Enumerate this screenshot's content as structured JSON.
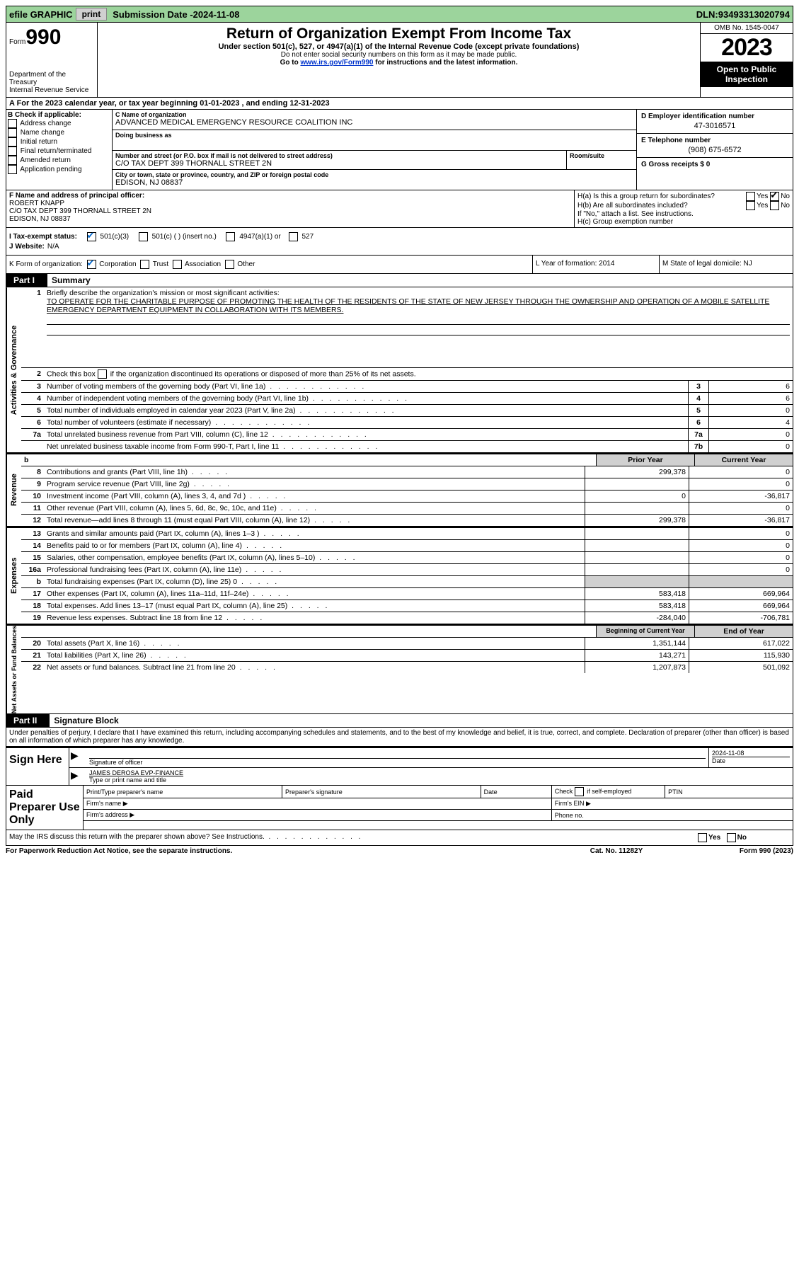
{
  "topbar": {
    "efile": "efile GRAPHIC",
    "print": "print",
    "sub_label": "Submission Date - ",
    "sub_date": "2024-11-08",
    "dln_label": "DLN: ",
    "dln": "93493313020794"
  },
  "header": {
    "form_prefix": "Form",
    "form_number": "990",
    "dept": "Department of the Treasury\nInternal Revenue Service",
    "title": "Return of Organization Exempt From Income Tax",
    "sub1": "Under section 501(c), 527, or 4947(a)(1) of the Internal Revenue Code (except private foundations)",
    "sub2": "Do not enter social security numbers on this form as it may be made public.",
    "sub3_prefix": "Go to ",
    "sub3_link": "www.irs.gov/Form990",
    "sub3_suffix": " for instructions and the latest information.",
    "omb": "OMB No. 1545-0047",
    "year": "2023",
    "open": "Open to Public Inspection"
  },
  "sectionA": "A  For the 2023 calendar year, or tax year beginning 01-01-2023    , and ending 12-31-2023",
  "colB": {
    "header": "B Check if applicable:",
    "items": [
      "Address change",
      "Name change",
      "Initial return",
      "Final return/terminated",
      "Amended return",
      "Application pending"
    ]
  },
  "colC": {
    "name_label": "C Name of organization",
    "name": "ADVANCED MEDICAL EMERGENCY RESOURCE COALITION INC",
    "dba_label": "Doing business as",
    "dba": "",
    "street_label": "Number and street (or P.O. box if mail is not delivered to street address)",
    "street": "C/O TAX DEPT 399 THORNALL STREET 2N",
    "room_label": "Room/suite",
    "city_label": "City or town, state or province, country, and ZIP or foreign postal code",
    "city": "EDISON, NJ  08837"
  },
  "colDE": {
    "d_label": "D Employer identification number",
    "d_val": "47-3016571",
    "e_label": "E Telephone number",
    "e_val": "(908) 675-6572",
    "g_label": "G Gross receipts $ ",
    "g_val": "0"
  },
  "rowF": {
    "label": "F  Name and address of principal officer:",
    "name": "ROBERT KNAPP",
    "addr1": "C/O TAX DEPT 399 THORNALL STREET 2N",
    "addr2": "EDISON, NJ  08837"
  },
  "rowH": {
    "ha": "H(a)  Is this a group return for subordinates?",
    "hb": "H(b)  Are all subordinates included?",
    "hb_note": "If \"No,\" attach a list. See instructions.",
    "hc": "H(c)  Group exemption number ",
    "yes": "Yes",
    "no": "No"
  },
  "rowI": {
    "label": "I    Tax-exempt status:",
    "opt1": "501(c)(3)",
    "opt2": "501(c) (  ) (insert no.)",
    "opt3": "4947(a)(1) or",
    "opt4": "527"
  },
  "rowJ": {
    "label": "J    Website: ",
    "val": "N/A"
  },
  "rowK": {
    "label": "K Form of organization:",
    "opts": [
      "Corporation",
      "Trust",
      "Association",
      "Other"
    ]
  },
  "rowL": {
    "label": "L Year of formation: ",
    "val": "2014"
  },
  "rowM": {
    "label": "M State of legal domicile: ",
    "val": "NJ"
  },
  "parts": {
    "p1": "Part I",
    "p1t": "Summary",
    "p2": "Part II",
    "p2t": "Signature Block"
  },
  "tabs": {
    "ag": "Activities & Governance",
    "rev": "Revenue",
    "exp": "Expenses",
    "na": "Net Assets or Fund Balances"
  },
  "p1": {
    "mission_label": "Briefly describe the organization's mission or most significant activities:",
    "mission": "TO OPERATE FOR THE CHARITABLE PURPOSE OF PROMOTING THE HEALTH OF THE RESIDENTS OF THE STATE OF NEW JERSEY THROUGH THE OWNERSHIP AND OPERATION OF A MOBILE SATELLITE EMERGENCY DEPARTMENT EQUIPMENT IN COLLABORATION WITH ITS MEMBERS.",
    "line2": "Check this box      if the organization discontinued its operations or disposed of more than 25% of its net assets.",
    "lines": [
      {
        "n": "3",
        "d": "Number of voting members of the governing body (Part VI, line 1a)",
        "lbl": "3",
        "v": "6"
      },
      {
        "n": "4",
        "d": "Number of independent voting members of the governing body (Part VI, line 1b)",
        "lbl": "4",
        "v": "6"
      },
      {
        "n": "5",
        "d": "Total number of individuals employed in calendar year 2023 (Part V, line 2a)",
        "lbl": "5",
        "v": "0"
      },
      {
        "n": "6",
        "d": "Total number of volunteers (estimate if necessary)",
        "lbl": "6",
        "v": "4"
      },
      {
        "n": "7a",
        "d": "Total unrelated business revenue from Part VIII, column (C), line 12",
        "lbl": "7a",
        "v": "0"
      },
      {
        "n": "",
        "d": "Net unrelated business taxable income from Form 990-T, Part I, line 11",
        "lbl": "7b",
        "v": "0"
      }
    ],
    "hdr_b": "b",
    "hdr_prior": "Prior Year",
    "hdr_curr": "Current Year",
    "rev": [
      {
        "n": "8",
        "d": "Contributions and grants (Part VIII, line 1h)",
        "c1": "299,378",
        "c2": "0"
      },
      {
        "n": "9",
        "d": "Program service revenue (Part VIII, line 2g)",
        "c1": "",
        "c2": "0"
      },
      {
        "n": "10",
        "d": "Investment income (Part VIII, column (A), lines 3, 4, and 7d )",
        "c1": "0",
        "c2": "-36,817"
      },
      {
        "n": "11",
        "d": "Other revenue (Part VIII, column (A), lines 5, 6d, 8c, 9c, 10c, and 11e)",
        "c1": "",
        "c2": "0"
      },
      {
        "n": "12",
        "d": "Total revenue—add lines 8 through 11 (must equal Part VIII, column (A), line 12)",
        "c1": "299,378",
        "c2": "-36,817"
      }
    ],
    "exp": [
      {
        "n": "13",
        "d": "Grants and similar amounts paid (Part IX, column (A), lines 1–3 )",
        "c1": "",
        "c2": "0"
      },
      {
        "n": "14",
        "d": "Benefits paid to or for members (Part IX, column (A), line 4)",
        "c1": "",
        "c2": "0"
      },
      {
        "n": "15",
        "d": "Salaries, other compensation, employee benefits (Part IX, column (A), lines 5–10)",
        "c1": "",
        "c2": "0"
      },
      {
        "n": "16a",
        "d": "Professional fundraising fees (Part IX, column (A), line 11e)",
        "c1": "",
        "c2": "0"
      },
      {
        "n": "b",
        "d": "Total fundraising expenses (Part IX, column (D), line 25) 0",
        "c1": "shade",
        "c2": "shade"
      },
      {
        "n": "17",
        "d": "Other expenses (Part IX, column (A), lines 11a–11d, 11f–24e)",
        "c1": "583,418",
        "c2": "669,964"
      },
      {
        "n": "18",
        "d": "Total expenses. Add lines 13–17 (must equal Part IX, column (A), line 25)",
        "c1": "583,418",
        "c2": "669,964"
      },
      {
        "n": "19",
        "d": "Revenue less expenses. Subtract line 18 from line 12",
        "c1": "-284,040",
        "c2": "-706,781"
      }
    ],
    "hdr_boy": "Beginning of Current Year",
    "hdr_eoy": "End of Year",
    "na": [
      {
        "n": "20",
        "d": "Total assets (Part X, line 16)",
        "c1": "1,351,144",
        "c2": "617,022"
      },
      {
        "n": "21",
        "d": "Total liabilities (Part X, line 26)",
        "c1": "143,271",
        "c2": "115,930"
      },
      {
        "n": "22",
        "d": "Net assets or fund balances. Subtract line 21 from line 20",
        "c1": "1,207,873",
        "c2": "501,092"
      }
    ]
  },
  "p2text": "Under penalties of perjury, I declare that I have examined this return, including accompanying schedules and statements, and to the best of my knowledge and belief, it is true, correct, and complete. Declaration of preparer (other than officer) is based on all information of which preparer has any knowledge.",
  "sign": {
    "here": "Sign Here",
    "sig_label": "Signature of officer",
    "officer": "JAMES DEROSA  EVP-FINANCE",
    "type_label": "Type or print name and title",
    "date_label": "Date",
    "date": "2024-11-08"
  },
  "paid": {
    "label": "Paid Preparer Use Only",
    "h1": "Print/Type preparer's name",
    "h2": "Preparer's signature",
    "h3": "Date",
    "h4_pre": "Check ",
    "h4_post": " if self-employed",
    "h5": "PTIN",
    "f_name": "Firm's name  ",
    "f_ein": "Firm's EIN  ",
    "f_addr": "Firm's address  ",
    "f_phone": "Phone no."
  },
  "discuss": {
    "q": "May the IRS discuss this return with the preparer shown above? See Instructions.",
    "yes": "Yes",
    "no": "No"
  },
  "footer": {
    "f1": "For Paperwork Reduction Act Notice, see the separate instructions.",
    "f2": "Cat. No. 11282Y",
    "f3_a": "Form ",
    "f3_b": "990",
    "f3_c": " (2023)"
  }
}
